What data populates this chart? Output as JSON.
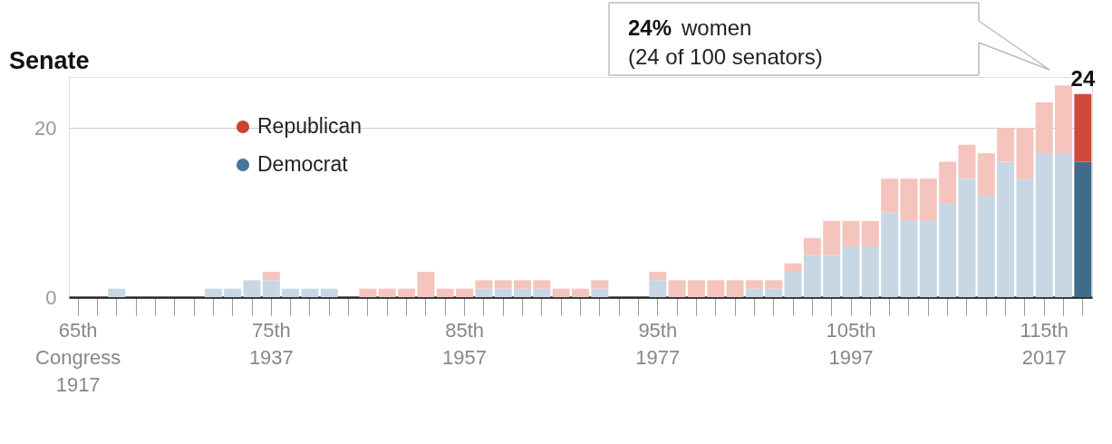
{
  "chart_data": {
    "type": "bar",
    "title": "Senate",
    "stacked": true,
    "legend": "top left",
    "grid": "y",
    "ylim": [
      0,
      26
    ],
    "yticks": [
      0,
      20
    ],
    "categories": [
      "65th Congress\n1917",
      null,
      null,
      null,
      null,
      null,
      null,
      null,
      null,
      null,
      "75th\n1937",
      null,
      null,
      null,
      null,
      null,
      null,
      null,
      null,
      null,
      "85th\n1957",
      null,
      null,
      null,
      null,
      null,
      null,
      null,
      null,
      null,
      "95th\n1977",
      null,
      null,
      null,
      null,
      null,
      null,
      null,
      null,
      null,
      "105th\n1997",
      null,
      null,
      null,
      null,
      null,
      null,
      null,
      null,
      null,
      "115th\n2017",
      null,
      null
    ],
    "series": [
      {
        "name": "Democrat",
        "color": "#4a7699",
        "values": [
          0,
          0,
          1,
          0,
          0,
          0,
          0,
          1,
          1,
          2,
          2,
          1,
          1,
          1,
          0,
          0,
          0,
          0,
          0,
          0,
          0,
          1,
          1,
          1,
          1,
          0,
          0,
          1,
          0,
          0,
          2,
          0,
          0,
          0,
          0,
          1,
          1,
          3,
          5,
          5,
          6,
          6,
          10,
          9,
          9,
          11,
          14,
          12,
          16,
          14,
          17,
          17,
          16
        ],
        "colors": [
          "#c8d7e4",
          "#c8d7e4",
          "#c8d7e4",
          "#c8d7e4",
          "#c8d7e4",
          "#c8d7e4",
          "#c8d7e4",
          "#c8d7e4",
          "#c8d7e4",
          "#c8d7e4",
          "#c8d7e4",
          "#c8d7e4",
          "#c8d7e4",
          "#c8d7e4",
          "#c8d7e4",
          "#c8d7e4",
          "#c8d7e4",
          "#c8d7e4",
          "#c8d7e4",
          "#c8d7e4",
          "#c8d7e4",
          "#c8d7e4",
          "#c8d7e4",
          "#c8d7e4",
          "#c8d7e4",
          "#c8d7e4",
          "#c8d7e4",
          "#c8d7e4",
          "#c8d7e4",
          "#c8d7e4",
          "#c8d7e4",
          "#c8d7e4",
          "#c8d7e4",
          "#c8d7e4",
          "#c8d7e4",
          "#c8d7e4",
          "#c8d7e4",
          "#c8d7e4",
          "#c8d7e4",
          "#c8d7e4",
          "#c8d7e4",
          "#c8d7e4",
          "#c8d7e4",
          "#c8d7e4",
          "#c8d7e4",
          "#c8d7e4",
          "#c8d7e4",
          "#c8d7e4",
          "#c8d7e4",
          "#c8d7e4",
          "#c8d7e4",
          "#c8d7e4",
          "#3f6c8c"
        ]
      },
      {
        "name": "Republican",
        "color": "#c9432f",
        "values": [
          0,
          0,
          0,
          0,
          0,
          0,
          0,
          0,
          0,
          0,
          1,
          0,
          0,
          0,
          0,
          1,
          1,
          1,
          3,
          1,
          1,
          1,
          1,
          1,
          1,
          1,
          1,
          1,
          0,
          0,
          1,
          2,
          2,
          2,
          2,
          1,
          1,
          1,
          2,
          4,
          3,
          3,
          4,
          5,
          5,
          5,
          4,
          5,
          4,
          6,
          6,
          8,
          8
        ],
        "colors": [
          "#f4c4bd",
          "#f4c4bd",
          "#f4c4bd",
          "#f4c4bd",
          "#f4c4bd",
          "#f4c4bd",
          "#f4c4bd",
          "#f4c4bd",
          "#f4c4bd",
          "#f4c4bd",
          "#f4c4bd",
          "#f4c4bd",
          "#f4c4bd",
          "#f4c4bd",
          "#f4c4bd",
          "#f4c4bd",
          "#f4c4bd",
          "#f4c4bd",
          "#f4c4bd",
          "#f4c4bd",
          "#f4c4bd",
          "#f4c4bd",
          "#f4c4bd",
          "#f4c4bd",
          "#f4c4bd",
          "#f4c4bd",
          "#f4c4bd",
          "#f4c4bd",
          "#f4c4bd",
          "#f4c4bd",
          "#f4c4bd",
          "#f4c4bd",
          "#f4c4bd",
          "#f4c4bd",
          "#f4c4bd",
          "#f4c4bd",
          "#f4c4bd",
          "#f4c4bd",
          "#f4c4bd",
          "#f4c4bd",
          "#f4c4bd",
          "#f4c4bd",
          "#f4c4bd",
          "#f4c4bd",
          "#f4c4bd",
          "#f4c4bd",
          "#f4c4bd",
          "#f4c4bd",
          "#f4c4bd",
          "#f4c4bd",
          "#f4c4bd",
          "#f4c4bd",
          "#d1493a"
        ]
      }
    ],
    "totals": [
      null,
      null,
      null,
      null,
      null,
      null,
      null,
      null,
      null,
      null,
      null,
      null,
      null,
      null,
      null,
      null,
      null,
      null,
      null,
      null,
      null,
      null,
      null,
      null,
      null,
      null,
      null,
      null,
      null,
      null,
      null,
      null,
      null,
      null,
      null,
      null,
      null,
      null,
      null,
      null,
      null,
      null,
      null,
      null,
      null,
      null,
      null,
      null,
      null,
      null,
      null,
      null,
      "24"
    ],
    "annotations": [
      "24% women",
      "(24 of 100 senators)"
    ]
  }
}
